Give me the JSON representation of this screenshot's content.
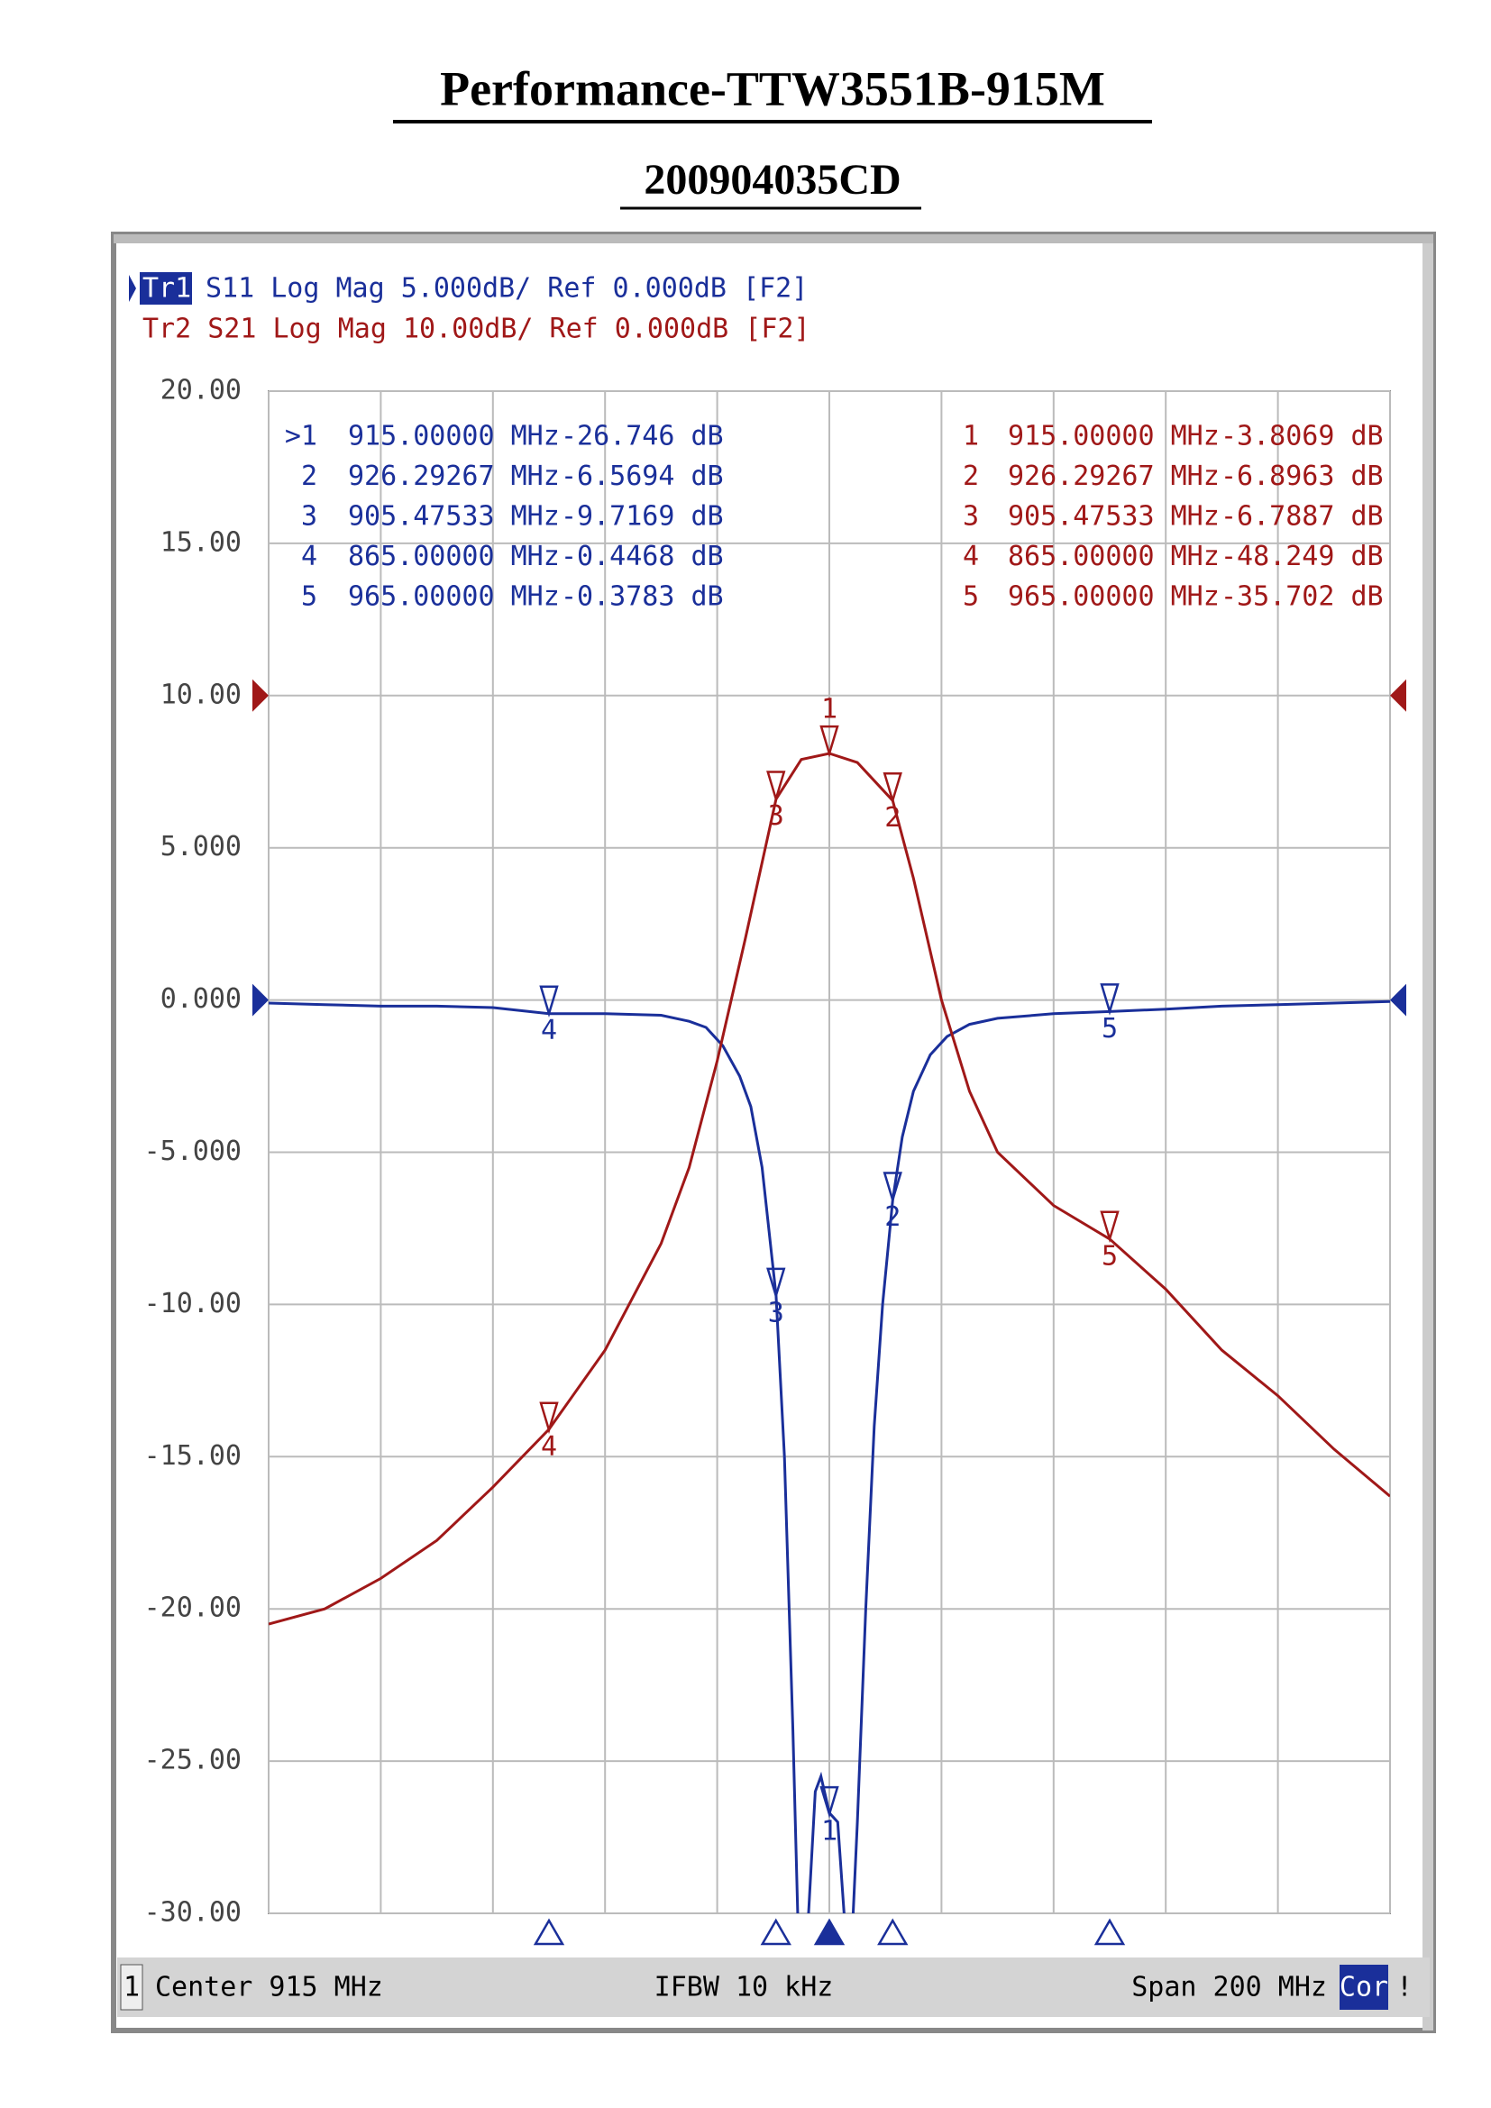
{
  "chart_data": {
    "type": "line",
    "title": "Performance-TTW3551B-915M",
    "subtitle": "200904035CD",
    "header": {
      "tr1_tag": "Tr1",
      "tr1_text": "S11 Log Mag 5.000dB/ Ref 0.000dB [F2]",
      "tr2_text": "Tr2 S21 Log Mag 10.00dB/ Ref 0.000dB [F2]"
    },
    "footer": {
      "channel": "1",
      "center": "Center 915 MHz",
      "ifbw": "IFBW 10 kHz",
      "span": "Span 200 MHz",
      "cor": "Cor",
      "flag": "!"
    },
    "xlim": [
      815,
      1015
    ],
    "xticks": [
      815,
      835,
      855,
      875,
      895,
      915,
      935,
      955,
      975,
      995,
      1015
    ],
    "ylim": [
      -30,
      20
    ],
    "yticks": [
      {
        "value": 20,
        "label": "20.00"
      },
      {
        "value": 15,
        "label": "15.00"
      },
      {
        "value": 10,
        "label": "10.00"
      },
      {
        "value": 5,
        "label": "5.000"
      },
      {
        "value": 0,
        "label": "0.000"
      },
      {
        "value": -5,
        "label": "-5.000"
      },
      {
        "value": -10,
        "label": "-10.00"
      },
      {
        "value": -15,
        "label": "-15.00"
      },
      {
        "value": -20,
        "label": "-20.00"
      },
      {
        "value": -25,
        "label": "-25.00"
      },
      {
        "value": -30,
        "label": "-30.00"
      }
    ],
    "y2lim": [
      -80,
      20
    ],
    "grid": true,
    "series": [
      {
        "name": "S11",
        "color": "#1a2f9a",
        "ref": 0,
        "active": true,
        "x": [
          815,
          825,
          835,
          845,
          855,
          865,
          875,
          885,
          890,
          893,
          896,
          899,
          901,
          903,
          905.5,
          907,
          908.5,
          909.5,
          911,
          912.5,
          913.5,
          915,
          916.5,
          918,
          919,
          920,
          921.5,
          923,
          924.5,
          926.3,
          928,
          930,
          933,
          936,
          940,
          945,
          955,
          965,
          975,
          985,
          995,
          1005,
          1015
        ],
        "values": [
          -0.1,
          -0.15,
          -0.2,
          -0.2,
          -0.25,
          -0.45,
          -0.45,
          -0.5,
          -0.7,
          -0.9,
          -1.5,
          -2.5,
          -3.5,
          -5.5,
          -9.7,
          -15,
          -24,
          -31,
          -31,
          -26,
          -25.5,
          -26.7,
          -27,
          -31,
          -31,
          -27,
          -20,
          -14,
          -10,
          -6.57,
          -4.5,
          -3,
          -1.8,
          -1.2,
          -0.8,
          -0.6,
          -0.45,
          -0.38,
          -0.3,
          -0.2,
          -0.15,
          -0.1,
          -0.05
        ],
        "marker_names": [
          "1",
          "2",
          "3",
          "4",
          "5"
        ],
        "marker_table_names": [
          ">1",
          "2",
          "3",
          "4",
          "5"
        ],
        "marker_x": [
          915,
          926.29267,
          905.47533,
          865,
          965
        ],
        "marker_x_labels": [
          "915.00000 MHz",
          "926.29267 MHz",
          "905.47533 MHz",
          "865.00000 MHz",
          "965.00000 MHz"
        ],
        "marker_values": [
          -26.746,
          -6.5694,
          -9.7169,
          -0.4468,
          -0.3783
        ],
        "marker_value_labels": [
          "-26.746 dB",
          "-6.5694 dB",
          "-9.7169 dB",
          "-0.4468 dB",
          "-0.3783 dB"
        ]
      },
      {
        "name": "S21",
        "color": "#a01818",
        "ref": 0,
        "axis": "y2",
        "active": false,
        "x": [
          815,
          825,
          835,
          845,
          855,
          865,
          875,
          885,
          890,
          895,
          900,
          905.5,
          910,
          915,
          920,
          926.3,
          930,
          935,
          940,
          945,
          955,
          965,
          975,
          985,
          995,
          1005,
          1015
        ],
        "values": [
          -61,
          -60,
          -58,
          -55.5,
          -52,
          -48.2,
          -43,
          -36,
          -31,
          -24,
          -16,
          -6.8,
          -4.2,
          -3.8,
          -4.4,
          -6.9,
          -12,
          -20,
          -26,
          -30,
          -33.5,
          -35.7,
          -39,
          -43,
          -46,
          -49.5,
          -52.6
        ],
        "marker_names": [
          "1",
          "2",
          "3",
          "4",
          "5"
        ],
        "marker_table_names": [
          "1",
          "2",
          "3",
          "4",
          "5"
        ],
        "marker_x": [
          915,
          926.29267,
          905.47533,
          865,
          965
        ],
        "marker_x_labels": [
          "915.00000 MHz",
          "926.29267 MHz",
          "905.47533 MHz",
          "865.00000 MHz",
          "965.00000 MHz"
        ],
        "marker_values": [
          -3.8069,
          -6.8963,
          -6.7887,
          -48.249,
          -35.702
        ],
        "marker_value_labels": [
          "-3.8069 dB",
          "-6.8963 dB",
          "-6.7887 dB",
          "-48.249 dB",
          "-35.702 dB"
        ]
      }
    ]
  }
}
